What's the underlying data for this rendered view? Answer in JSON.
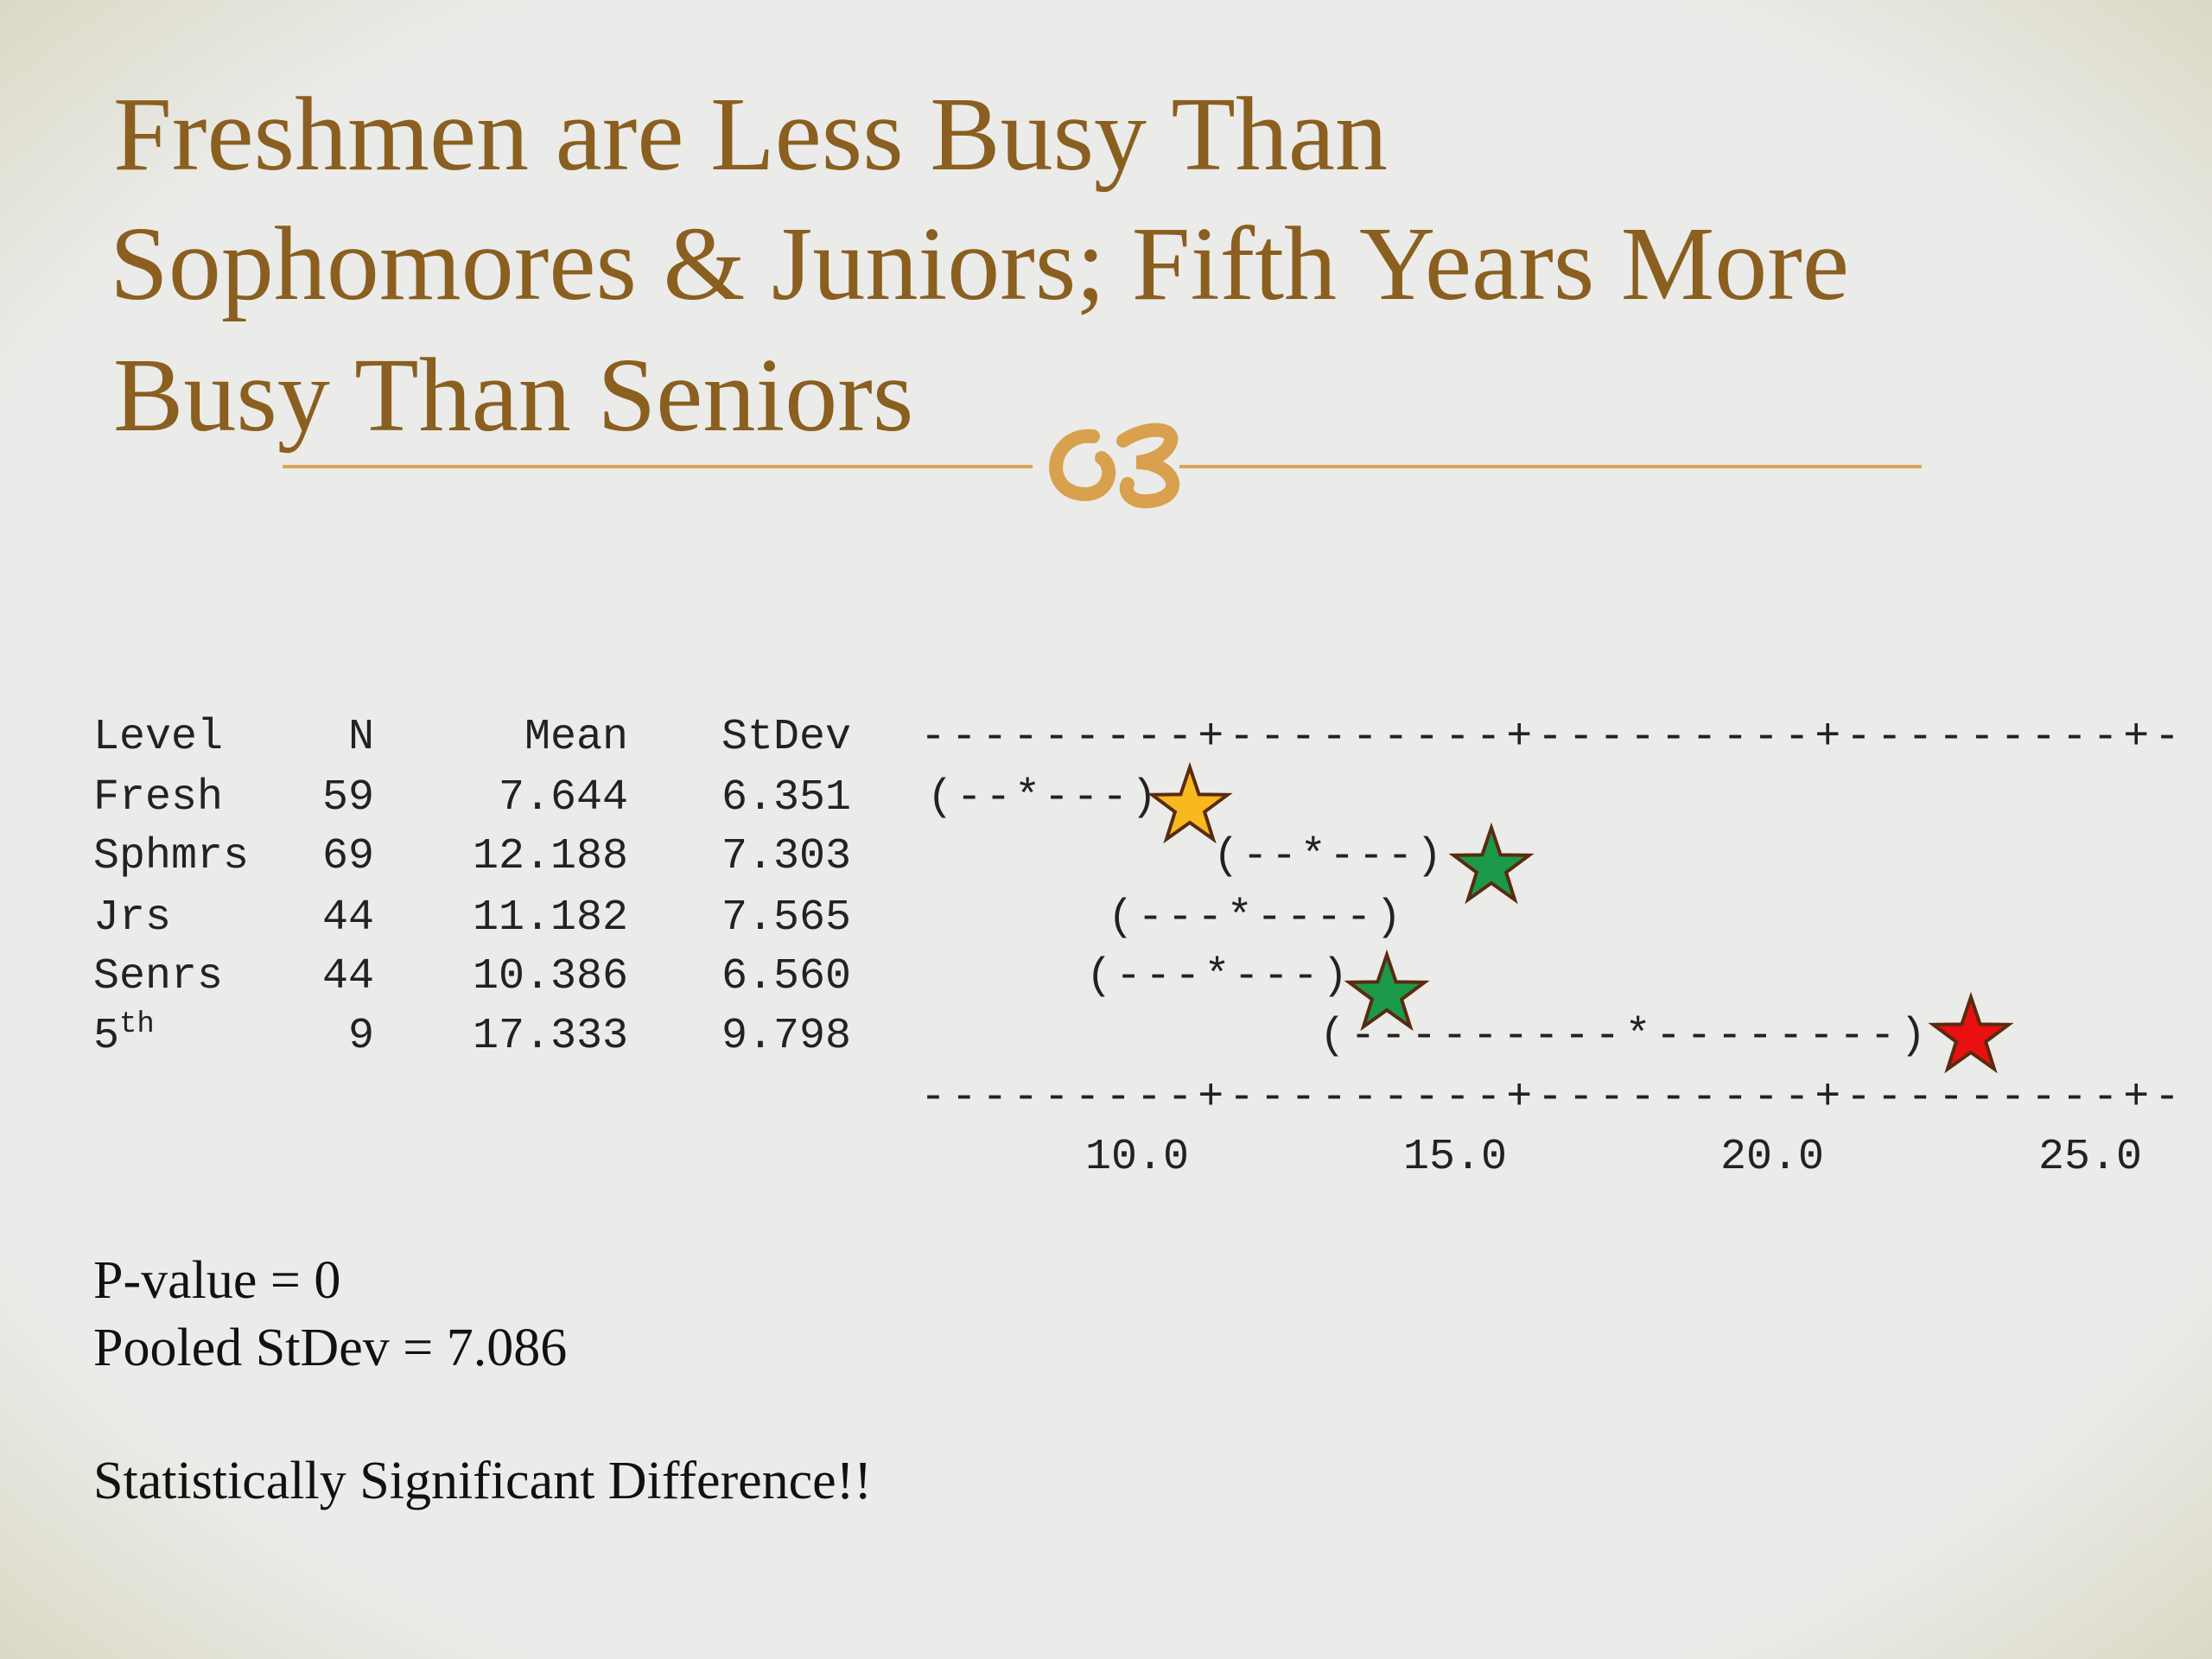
{
  "title": {
    "lines": [
      "Freshmen are Less Busy Than",
      "Sophomores & Juniors; Fifth Years More",
      "Busy Than Seniors"
    ]
  },
  "table": {
    "header": [
      "Level",
      "N",
      "Mean",
      "StDev"
    ],
    "rows": [
      [
        "Fresh",
        "59",
        "7.644",
        "6.351"
      ],
      [
        "Sphmrs",
        "69",
        "12.188",
        "7.303"
      ],
      [
        "Jrs",
        "44",
        "11.182",
        "7.565"
      ],
      [
        "Senrs",
        "44",
        "10.386",
        "6.560"
      ],
      [
        {
          "base": "5",
          "sup": "th"
        },
        "9",
        "17.333",
        "9.798"
      ]
    ]
  },
  "interval_plot": {
    "top_rule": "---------+---------+---------+---------+-",
    "intervals": [
      "(--*---)",
      "(--*---)",
      "(---*----)",
      "(---*---)",
      "(---------*--------)"
    ],
    "bottom_rule": "---------+---------+---------+---------+-",
    "axis_labels": [
      "10.0",
      "15.0",
      "20.0",
      "25.0"
    ]
  },
  "footer": {
    "lines": [
      "P-value = 0",
      "Pooled StDev = 7.086"
    ],
    "conclusion": "Statistically Significant Difference!!"
  }
}
